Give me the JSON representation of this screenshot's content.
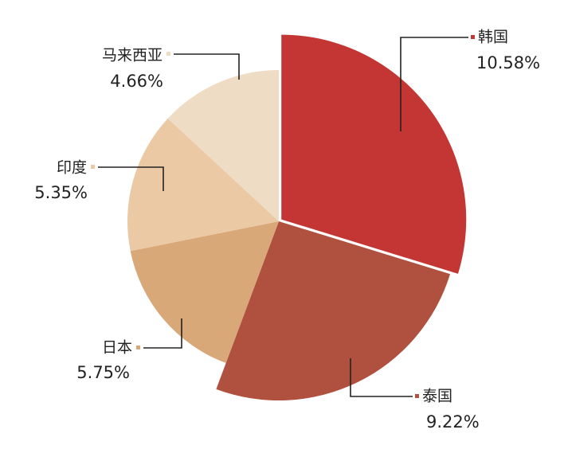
{
  "chart_data": {
    "type": "pie",
    "categories": [
      "韩国",
      "泰国",
      "日本",
      "印度",
      "马来西亚"
    ],
    "values": [
      10.58,
      9.22,
      5.75,
      5.35,
      4.66
    ],
    "value_labels": [
      "10.58%",
      "9.22%",
      "5.75%",
      "5.35%",
      "4.66%"
    ],
    "colors": [
      "#c43633",
      "#b0503e",
      "#d9a878",
      "#ebc9a5",
      "#eedcc4"
    ]
  }
}
